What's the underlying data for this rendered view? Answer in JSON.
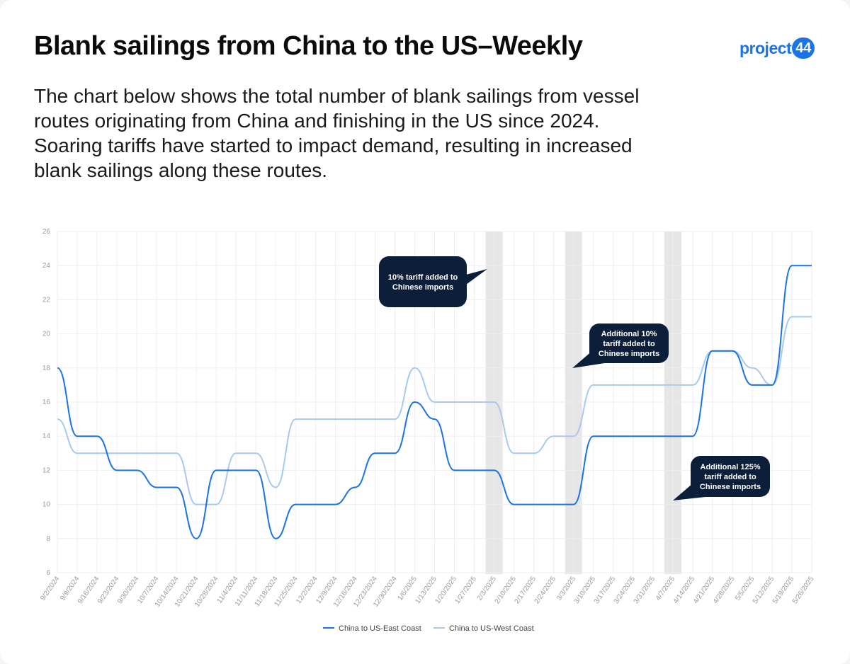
{
  "header": {
    "title": "Blank sailings from China to the US–Weekly",
    "subtitle": "The chart below shows the total number of blank sailings from vessel routes originating from China and finishing in the US since 2024. Soaring tariffs have started to impact demand, resulting in increased blank sailings along these routes.",
    "logo_text": "project",
    "logo_badge": "44"
  },
  "colors": {
    "east": "#1a73e8",
    "west": "#a8c9ef",
    "callout_bg": "#0b1f3a",
    "shade": "#e6e6e6",
    "grid": "#eeeeee"
  },
  "chart_data": {
    "type": "line",
    "title": "",
    "xlabel": "",
    "ylabel": "",
    "ylim": [
      6,
      26
    ],
    "yticks": [
      6,
      8,
      10,
      12,
      14,
      16,
      18,
      20,
      22,
      24,
      26
    ],
    "grid": true,
    "legend_position": "bottom",
    "x": [
      "9/2/2024",
      "9/9/2024",
      "9/16/2024",
      "9/23/2024",
      "9/30/2024",
      "10/7/2024",
      "10/14/2024",
      "10/21/2024",
      "10/28/2024",
      "11/4/2024",
      "11/11/2024",
      "11/18/2024",
      "11/25/2024",
      "12/2/2024",
      "12/9/2024",
      "12/16/2024",
      "12/23/2024",
      "12/30/2024",
      "1/6/2025",
      "1/13/2025",
      "1/20/2025",
      "1/27/2025",
      "2/3/2025",
      "2/10/2025",
      "2/17/2025",
      "2/24/2025",
      "3/3/2025",
      "3/10/2025",
      "3/17/2025",
      "3/24/2025",
      "3/31/2025",
      "4/7/2025",
      "4/14/2025",
      "4/21/2025",
      "4/28/2025",
      "5/5/2025",
      "5/12/2025",
      "5/19/2025",
      "5/26/2025"
    ],
    "series": [
      {
        "name": "China to US-East Coast",
        "color": "#1a73e8",
        "values": [
          18,
          14,
          14,
          12,
          12,
          11,
          11,
          8,
          12,
          12,
          12,
          8,
          10,
          10,
          10,
          11,
          13,
          13,
          16,
          15,
          12,
          12,
          12,
          10,
          10,
          10,
          10,
          14,
          14,
          14,
          14,
          14,
          14,
          19,
          19,
          17,
          17,
          24,
          24
        ]
      },
      {
        "name": "China to US-West Coast",
        "color": "#a8c9ef",
        "values": [
          15,
          13,
          13,
          13,
          13,
          13,
          13,
          10,
          10,
          13,
          13,
          11,
          15,
          15,
          15,
          15,
          15,
          15,
          18,
          16,
          16,
          16,
          16,
          13,
          13,
          14,
          14,
          17,
          17,
          17,
          17,
          17,
          17,
          19,
          19,
          18,
          17,
          21,
          21
        ]
      }
    ],
    "shaded_weeks": [
      "2/3/2025",
      "3/3/2025",
      "4/7/2025"
    ],
    "annotations": [
      {
        "lines": [
          "10% tariff added to",
          "Chinese imports"
        ],
        "target": "2/3/2025"
      },
      {
        "lines": [
          "Additional 10%",
          "tariff added to",
          "Chinese imports"
        ],
        "target": "3/3/2025"
      },
      {
        "lines": [
          "Additional 125%",
          "tariff added to",
          "Chinese imports"
        ],
        "target": "4/7/2025"
      }
    ]
  }
}
